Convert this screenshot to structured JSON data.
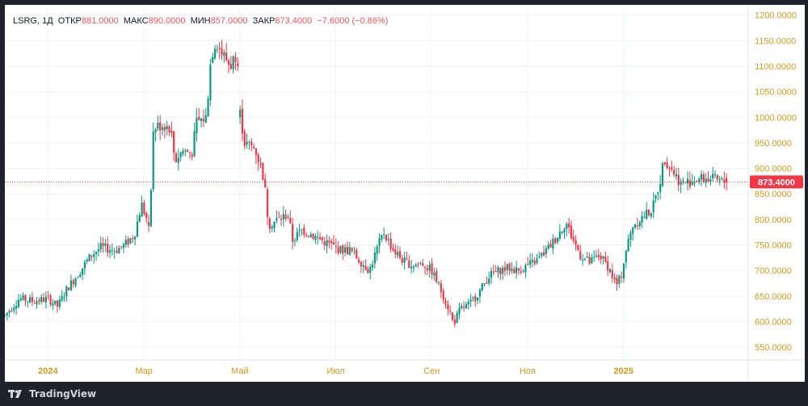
{
  "legend": {
    "symbol": "LSRG",
    "interval": "1Д",
    "open_label": "ОТКР",
    "open": "881.0000",
    "high_label": "МАКС",
    "high": "890.0000",
    "low_label": "МИН",
    "low": "857.0000",
    "close_label": "ЗАКР",
    "close": "873.4000",
    "change": "−7.6000 (−0.86%)"
  },
  "price_tag": "873.4000",
  "brand": "TradingView",
  "colors": {
    "up": "#089981",
    "down": "#f23645",
    "axis_text": "#d49a1a",
    "grid": "#f0f3fa",
    "price_line": "#f23645"
  },
  "chart_data": {
    "type": "candlestick",
    "y_ticks": [
      "1200.0000",
      "1150.0000",
      "1100.0000",
      "1050.0000",
      "1000.0000",
      "950.0000",
      "900.0000",
      "850.0000",
      "800.0000",
      "750.0000",
      "700.0000",
      "650.0000",
      "600.0000",
      "550.0000"
    ],
    "y_range": [
      525,
      1220
    ],
    "x_ticks": [
      {
        "label": "2024",
        "month": 0
      },
      {
        "label": "Мар",
        "month": 2
      },
      {
        "label": "Май",
        "month": 4
      },
      {
        "label": "Июл",
        "month": 6
      },
      {
        "label": "Сен",
        "month": 8
      },
      {
        "label": "Ноя",
        "month": 10
      },
      {
        "label": "2025",
        "month": 12
      }
    ],
    "x_range_months": [
      -0.9,
      14.6
    ],
    "last_close": 873.4,
    "anchors": [
      [
        -0.9,
        612
      ],
      [
        -0.6,
        645
      ],
      [
        -0.3,
        640
      ],
      [
        0.0,
        645
      ],
      [
        0.2,
        630
      ],
      [
        0.4,
        665
      ],
      [
        0.6,
        690
      ],
      [
        0.9,
        730
      ],
      [
        1.1,
        745
      ],
      [
        1.4,
        740
      ],
      [
        1.6,
        750
      ],
      [
        1.8,
        770
      ],
      [
        1.95,
        830
      ],
      [
        2.1,
        790
      ],
      [
        2.15,
        870
      ],
      [
        2.2,
        980
      ],
      [
        2.4,
        985
      ],
      [
        2.55,
        980
      ],
      [
        2.65,
        915
      ],
      [
        2.8,
        935
      ],
      [
        3.0,
        930
      ],
      [
        3.1,
        990
      ],
      [
        3.3,
        1000
      ],
      [
        3.4,
        1120
      ],
      [
        3.5,
        1150
      ],
      [
        3.6,
        1130
      ],
      [
        3.8,
        1100
      ],
      [
        3.95,
        1130
      ],
      [
        4.0,
        1010
      ],
      [
        4.1,
        950
      ],
      [
        4.3,
        940
      ],
      [
        4.35,
        930
      ],
      [
        4.5,
        880
      ],
      [
        4.6,
        790
      ],
      [
        4.8,
        800
      ],
      [
        5.0,
        810
      ],
      [
        5.1,
        760
      ],
      [
        5.3,
        780
      ],
      [
        5.5,
        770
      ],
      [
        5.7,
        760
      ],
      [
        5.9,
        750
      ],
      [
        6.1,
        740
      ],
      [
        6.3,
        740
      ],
      [
        6.5,
        720
      ],
      [
        6.7,
        700
      ],
      [
        6.85,
        740
      ],
      [
        7.0,
        775
      ],
      [
        7.2,
        740
      ],
      [
        7.4,
        720
      ],
      [
        7.6,
        710
      ],
      [
        7.8,
        715
      ],
      [
        8.0,
        700
      ],
      [
        8.2,
        660
      ],
      [
        8.4,
        615
      ],
      [
        8.45,
        595
      ],
      [
        8.6,
        625
      ],
      [
        8.8,
        635
      ],
      [
        9.0,
        660
      ],
      [
        9.2,
        690
      ],
      [
        9.4,
        700
      ],
      [
        9.6,
        705
      ],
      [
        9.8,
        700
      ],
      [
        10.0,
        710
      ],
      [
        10.2,
        720
      ],
      [
        10.4,
        740
      ],
      [
        10.6,
        765
      ],
      [
        10.8,
        795
      ],
      [
        10.9,
        770
      ],
      [
        11.1,
        730
      ],
      [
        11.3,
        715
      ],
      [
        11.5,
        730
      ],
      [
        11.7,
        705
      ],
      [
        11.85,
        670
      ],
      [
        11.95,
        690
      ],
      [
        12.05,
        740
      ],
      [
        12.2,
        790
      ],
      [
        12.4,
        805
      ],
      [
        12.6,
        820
      ],
      [
        12.75,
        870
      ],
      [
        12.85,
        920
      ],
      [
        13.0,
        900
      ],
      [
        13.2,
        870
      ],
      [
        13.4,
        875
      ],
      [
        13.6,
        880
      ],
      [
        13.8,
        880
      ],
      [
        14.0,
        875
      ],
      [
        14.15,
        873.4
      ]
    ],
    "gaps": [
      {
        "at": 2.1,
        "note": "breakaway up"
      },
      {
        "at": 4.0,
        "note": "gap down"
      }
    ]
  }
}
